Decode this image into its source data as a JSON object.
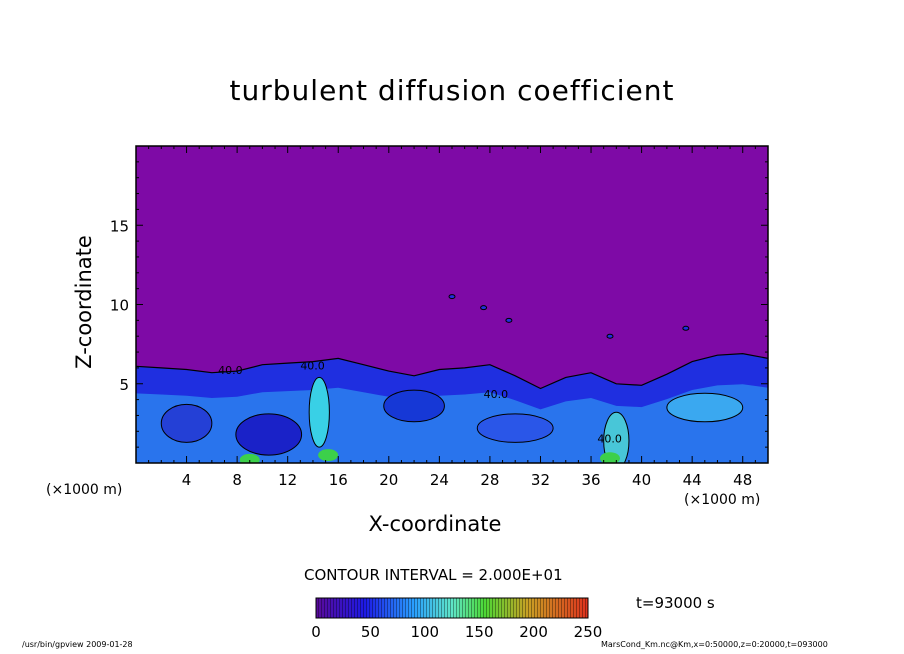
{
  "chart_data": {
    "type": "heatmap",
    "title": "turbulent diffusion coefficient",
    "xlabel": "X-coordinate",
    "ylabel": "Z-coordinate",
    "x_unit": "(×1000 m)",
    "x_unit_right": "(×1000 m)",
    "xlim": [
      0,
      50
    ],
    "ylim": [
      0,
      20
    ],
    "x_ticks": [
      4,
      8,
      12,
      16,
      20,
      24,
      28,
      32,
      36,
      40,
      44,
      48
    ],
    "y_ticks": [
      5,
      10,
      15
    ],
    "x_tick_labels": [
      "4",
      "8",
      "12",
      "16",
      "20",
      "24",
      "28",
      "32",
      "36",
      "40",
      "44",
      "48"
    ],
    "y_tick_labels": [
      "5",
      "10",
      "15"
    ],
    "contour_interval": "CONTOUR INTERVAL = 2.000E+01",
    "contour_labels": [
      "40.0",
      "40.0",
      "40.0",
      "40.0"
    ],
    "colorbar": {
      "min": 0,
      "max": 250,
      "ticks": [
        0,
        50,
        100,
        150,
        200,
        250
      ],
      "tick_labels": [
        "0",
        "50",
        "100",
        "150",
        "200",
        "250"
      ]
    },
    "background_value_color": "#7e0aa6",
    "time_label": "t=93000 s",
    "boundary_layer_top_km": [
      [
        0,
        6.1
      ],
      [
        2,
        6.0
      ],
      [
        4,
        5.9
      ],
      [
        6,
        5.7
      ],
      [
        8,
        5.8
      ],
      [
        10,
        6.2
      ],
      [
        12,
        6.3
      ],
      [
        14,
        6.4
      ],
      [
        16,
        6.6
      ],
      [
        18,
        6.2
      ],
      [
        20,
        5.8
      ],
      [
        22,
        5.5
      ],
      [
        24,
        5.9
      ],
      [
        26,
        6.0
      ],
      [
        28,
        6.2
      ],
      [
        30,
        5.5
      ],
      [
        32,
        4.7
      ],
      [
        34,
        5.4
      ],
      [
        36,
        5.7
      ],
      [
        38,
        5.0
      ],
      [
        40,
        4.9
      ],
      [
        42,
        5.6
      ],
      [
        44,
        6.4
      ],
      [
        46,
        6.8
      ],
      [
        48,
        6.9
      ],
      [
        50,
        6.6
      ]
    ]
  },
  "footer_left": "/usr/bin/gpview   2009-01-28",
  "footer_right": "MarsCond_Km.nc@Km,x=0:50000,z=0:20000,t=093000",
  "colors": {
    "background": "#7e0aa6",
    "frame": "#000000"
  }
}
